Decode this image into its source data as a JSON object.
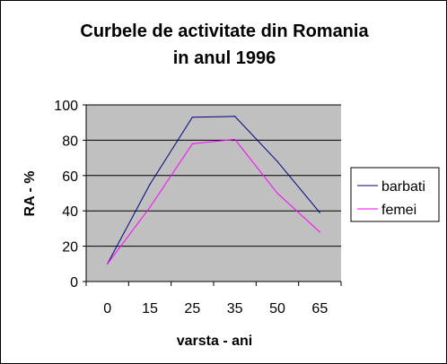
{
  "chart_data": {
    "type": "line",
    "title_line1": "Curbele de activitate din Romania",
    "title_line2": "in anul 1996",
    "xlabel": "varsta - ani",
    "ylabel": "RA - %",
    "categories": [
      "0",
      "15",
      "25",
      "35",
      "50",
      "65"
    ],
    "yticks": [
      "0",
      "20",
      "40",
      "60",
      "80",
      "100"
    ],
    "ylim": [
      0,
      100
    ],
    "grid": true,
    "legend_position": "right",
    "plot_background": "#c0c0c0",
    "series": [
      {
        "name": "barbati",
        "color": "#000080",
        "values": [
          10,
          55,
          93,
          93.5,
          68,
          39
        ]
      },
      {
        "name": "femei",
        "color": "#ff00ff",
        "values": [
          10,
          42,
          78,
          80.5,
          50,
          28
        ]
      }
    ]
  }
}
